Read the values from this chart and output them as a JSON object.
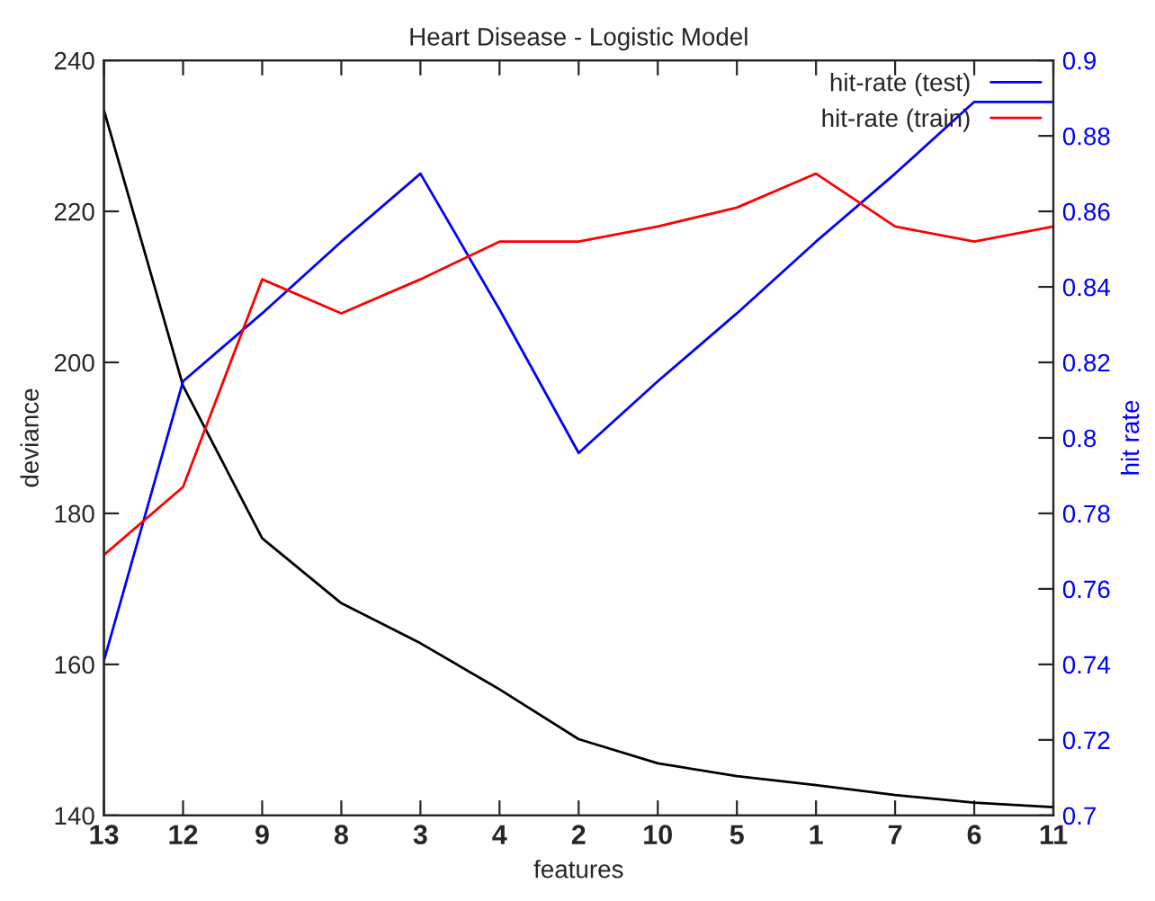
{
  "chart_data": {
    "type": "line",
    "title": "Heart Disease - Logistic Model",
    "xlabel": "features",
    "ylabel": "deviance",
    "y2label": "hit rate",
    "categories": [
      "13",
      "12",
      "9",
      "8",
      "3",
      "4",
      "2",
      "10",
      "5",
      "1",
      "7",
      "6",
      "11"
    ],
    "series": [
      {
        "color": "#000000",
        "values": [
          233.4,
          196.9,
          176.7,
          168.1,
          162.8,
          156.7,
          150.1,
          146.9,
          145.2,
          144.0,
          142.7,
          141.7,
          141.1
        ]
      },
      {
        "name": "hit-rate (test)",
        "color": "#0000ff",
        "axis": "y2",
        "values": [
          0.741,
          0.815,
          0.833,
          0.852,
          0.87,
          0.834,
          0.796,
          0.815,
          0.833,
          0.852,
          0.87,
          0.889,
          0.889
        ]
      },
      {
        "name": "hit-rate (train)",
        "color": "#ff0000",
        "axis": "y2",
        "values": [
          0.769,
          0.787,
          0.842,
          0.833,
          0.842,
          0.852,
          0.852,
          0.856,
          0.861,
          0.87,
          0.856,
          0.852,
          0.856
        ]
      }
    ],
    "ylim": [
      140,
      240
    ],
    "yticks": [
      140,
      160,
      180,
      200,
      220,
      240
    ],
    "y2lim": [
      0.7,
      0.9
    ],
    "y2ticks": [
      0.7,
      0.72,
      0.74,
      0.76,
      0.78,
      0.8,
      0.82,
      0.84,
      0.86,
      0.88,
      0.9
    ],
    "grid": false,
    "legend": "top right",
    "marker": "none",
    "line_style": "solid"
  }
}
